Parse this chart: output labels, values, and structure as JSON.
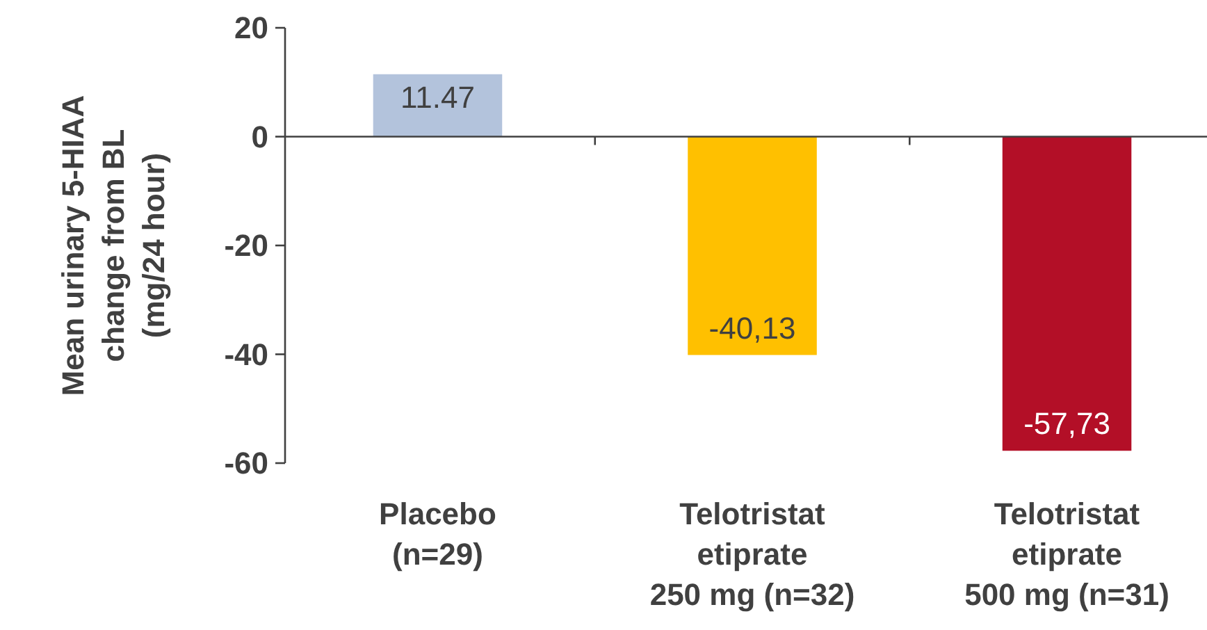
{
  "chart_data": {
    "type": "bar",
    "ylabel": "Mean urinary 5-HIAA\nchange from BL\n(mg/24 hour)",
    "categories": [
      "Placebo\n(n=29)",
      "Telotristat\netiprate\n250 mg (n=32)",
      "Telotristat\netiprate\n500 mg (n=31)"
    ],
    "values": [
      11.47,
      -40.13,
      -57.73
    ],
    "colors": [
      "#b3c3dc",
      "#ffc000",
      "#b30f27"
    ],
    "value_labels": [
      "11.47",
      "-40,13",
      "-57,73"
    ],
    "ylim": [
      -60,
      20
    ],
    "yticks": [
      20,
      0,
      -20,
      -40,
      -60
    ]
  }
}
